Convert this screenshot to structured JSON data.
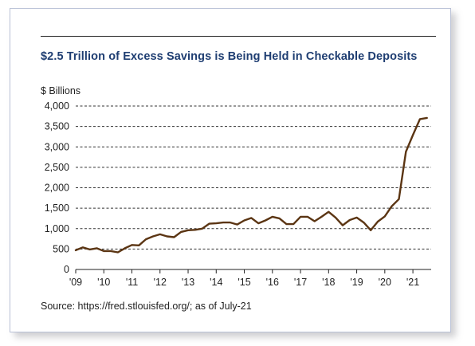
{
  "chart_data": {
    "type": "line",
    "title": "$2.5 Trillion of Excess Savings is Being Held in Checkable Deposits",
    "ylabel": "$ Billions",
    "xlabel": "",
    "source": "Source: https://fred.stlouisfed.org/; as of July-21",
    "ylim": [
      0,
      4000
    ],
    "xlim": [
      2009,
      2021.65
    ],
    "y_ticks": [
      0,
      500,
      1000,
      1500,
      2000,
      2500,
      3000,
      3500,
      4000
    ],
    "y_tick_labels": [
      "0",
      "500",
      "1,000",
      "1,500",
      "2,000",
      "2,500",
      "3,000",
      "3,500",
      "4,000"
    ],
    "x_ticks": [
      2009,
      2010,
      2011,
      2012,
      2013,
      2014,
      2015,
      2016,
      2017,
      2018,
      2019,
      2020,
      2021
    ],
    "x_tick_labels": [
      "'09",
      "'10",
      "'11",
      "'12",
      "'13",
      "'14",
      "'15",
      "'16",
      "'17",
      "'18",
      "'19",
      "'20",
      "'21"
    ],
    "grid": "horizontal-dashed",
    "line_color": "#5b3513",
    "series": [
      {
        "x": [
          2009.0,
          2009.25,
          2009.5,
          2009.75,
          2010.0,
          2010.25,
          2010.5,
          2010.75,
          2011.0,
          2011.25,
          2011.5,
          2011.75,
          2012.0,
          2012.25,
          2012.5,
          2012.75,
          2013.0,
          2013.25,
          2013.5,
          2013.75,
          2014.0,
          2014.25,
          2014.5,
          2014.75,
          2015.0,
          2015.25,
          2015.5,
          2015.75,
          2016.0,
          2016.25,
          2016.5,
          2016.75,
          2017.0,
          2017.25,
          2017.5,
          2017.75,
          2018.0,
          2018.25,
          2018.5,
          2018.75,
          2019.0,
          2019.25,
          2019.5,
          2019.75,
          2020.0,
          2020.25,
          2020.5,
          2020.75,
          2021.0,
          2021.25,
          2021.5
        ],
        "values": [
          470,
          540,
          490,
          520,
          450,
          450,
          420,
          520,
          600,
          590,
          740,
          810,
          860,
          810,
          790,
          920,
          960,
          970,
          1000,
          1120,
          1130,
          1150,
          1150,
          1100,
          1200,
          1260,
          1130,
          1200,
          1290,
          1250,
          1110,
          1110,
          1290,
          1290,
          1180,
          1290,
          1410,
          1270,
          1080,
          1210,
          1270,
          1150,
          960,
          1170,
          1300,
          1550,
          1720,
          2880,
          3290,
          3680,
          3710
        ]
      }
    ]
  }
}
